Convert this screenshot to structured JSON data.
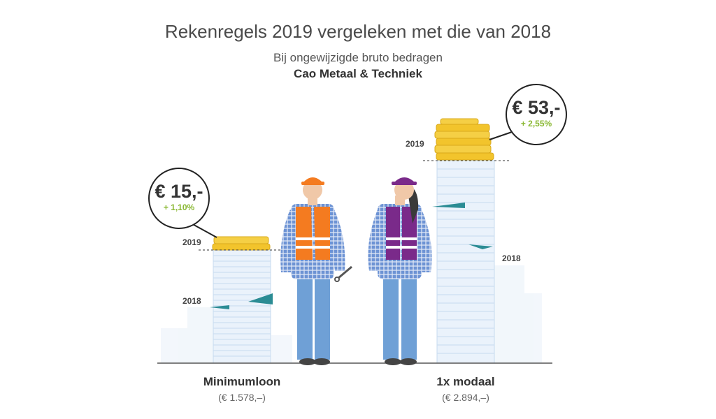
{
  "header": {
    "title": "Rekenregels 2019 vergeleken met die van 2018",
    "subtitle": "Bij ongewijzigde bruto bedragen",
    "subtitle_bold": "Cao Metaal & Techniek"
  },
  "left": {
    "category": "Minimumloon",
    "amount": "(€ 1.578,–)",
    "label_2019": "2019",
    "label_2018": "2018",
    "bubble_value": "€ 15,-",
    "bubble_pct": "+ 1,10%"
  },
  "right": {
    "category": "1x modaal",
    "amount": "(€ 2.894,–)",
    "label_2019": "2019",
    "label_2018": "2018",
    "bubble_value": "€ 53,-",
    "bubble_pct": "+ 2,55%"
  },
  "colors": {
    "coin_gold": "#f2c42c",
    "coin_stack_pale": "#dce9f6",
    "teal": "#2b8c94",
    "orange_vest": "#f47b20",
    "purple_vest": "#7a2a8a",
    "jeans": "#6fa0d6",
    "pct_green": "#8ab833"
  }
}
